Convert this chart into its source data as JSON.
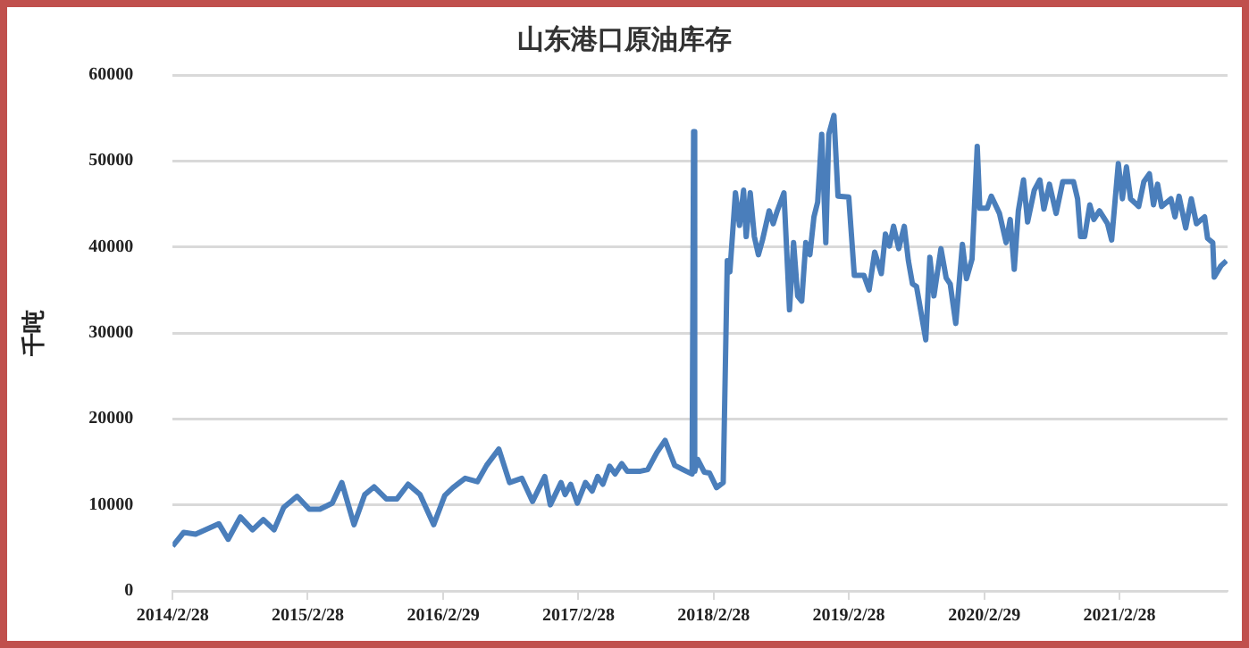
{
  "chart_data": {
    "type": "line",
    "title": "山东港口原油库存",
    "ylabel": "千吨",
    "x": [
      "2014-02-28",
      "2014-03-30",
      "2014-05-01",
      "2014-07-03",
      "2014-07-28",
      "2014-08-30",
      "2014-10-02",
      "2014-10-31",
      "2014-11-29",
      "2014-12-25",
      "2015-01-30",
      "2015-03-04",
      "2015-04-02",
      "2015-05-05",
      "2015-05-31",
      "2015-07-03",
      "2015-08-01",
      "2015-08-26",
      "2015-09-28",
      "2015-10-27",
      "2015-11-26",
      "2015-12-28",
      "2016-02-03",
      "2016-03-04",
      "2016-03-26",
      "2016-04-28",
      "2016-05-31",
      "2016-06-25",
      "2016-07-28",
      "2016-08-26",
      "2016-09-28",
      "2016-10-27",
      "2016-11-29",
      "2016-12-14",
      "2017-01-12",
      "2017-01-23",
      "2017-02-07",
      "2017-02-25",
      "2017-03-19",
      "2017-04-06",
      "2017-04-21",
      "2017-05-05",
      "2017-05-23",
      "2017-06-07",
      "2017-06-25",
      "2017-07-10",
      "2017-08-12",
      "2017-09-03",
      "2017-09-28",
      "2017-10-20",
      "2017-11-15",
      "2017-12-17",
      "2018-01-01",
      "2018-01-05",
      "2018-01-08",
      "2018-01-16",
      "2018-02-03",
      "2018-02-17",
      "2018-03-08",
      "2018-03-26",
      "2018-04-06",
      "2018-04-13",
      "2018-04-28",
      "2018-05-09",
      "2018-05-20",
      "2018-05-27",
      "2018-06-07",
      "2018-06-18",
      "2018-06-29",
      "2018-07-10",
      "2018-07-28",
      "2018-08-08",
      "2018-08-19",
      "2018-09-06",
      "2018-09-21",
      "2018-10-02",
      "2018-10-13",
      "2018-10-24",
      "2018-11-04",
      "2018-11-15",
      "2018-11-26",
      "2018-12-06",
      "2018-12-17",
      "2018-12-28",
      "2019-01-05",
      "2019-01-19",
      "2019-01-30",
      "2019-02-28",
      "2019-03-15",
      "2019-04-10",
      "2019-04-24",
      "2019-05-09",
      "2019-05-27",
      "2019-06-07",
      "2019-06-18",
      "2019-06-29",
      "2019-07-13",
      "2019-07-28",
      "2019-08-08",
      "2019-08-19",
      "2019-08-30",
      "2019-09-24",
      "2019-10-05",
      "2019-10-16",
      "2019-11-04",
      "2019-11-18",
      "2019-11-29",
      "2019-12-14",
      "2020-01-01",
      "2020-01-12",
      "2020-01-27",
      "2020-02-10",
      "2020-02-17",
      "2020-03-08",
      "2020-03-19",
      "2020-04-10",
      "2020-04-28",
      "2020-05-09",
      "2020-05-20",
      "2020-05-31",
      "2020-06-14",
      "2020-06-25",
      "2020-07-13",
      "2020-07-28",
      "2020-08-08",
      "2020-08-23",
      "2020-09-10",
      "2020-09-28",
      "2020-10-27",
      "2020-11-07",
      "2020-11-15",
      "2020-11-26",
      "2020-12-10",
      "2020-12-21",
      "2021-01-05",
      "2021-01-27",
      "2021-02-07",
      "2021-02-25",
      "2021-03-08",
      "2021-03-19",
      "2021-03-30",
      "2021-04-21",
      "2021-05-05",
      "2021-05-20",
      "2021-05-31",
      "2021-06-11",
      "2021-06-22",
      "2021-07-17",
      "2021-07-28",
      "2021-08-08",
      "2021-08-26",
      "2021-09-10",
      "2021-09-24",
      "2021-10-16",
      "2021-10-24",
      "2021-11-07",
      "2021-11-11",
      "2021-11-29",
      "2021-12-14"
    ],
    "series": [
      {
        "color": "#4a7ebb",
        "values": [
          5200,
          6800,
          6600,
          7800,
          6000,
          8600,
          7100,
          8300,
          7100,
          9700,
          11000,
          9500,
          9500,
          10200,
          12600,
          7700,
          11200,
          12100,
          10700,
          10700,
          12400,
          11200,
          7700,
          11100,
          12000,
          13100,
          12700,
          14600,
          16500,
          12600,
          13100,
          10400,
          13300,
          10000,
          12600,
          11200,
          12400,
          10200,
          12600,
          11600,
          13300,
          12400,
          14500,
          13600,
          14800,
          13900,
          13900,
          14100,
          16100,
          17500,
          14600,
          13900,
          13600,
          53400,
          13900,
          15300,
          13800,
          13700,
          12000,
          12600,
          38400,
          37100,
          46300,
          42500,
          46600,
          41200,
          46300,
          41200,
          39100,
          40800,
          44200,
          42700,
          44200,
          46300,
          32700,
          40500,
          34300,
          33700,
          40500,
          39100,
          43500,
          45200,
          53100,
          40500,
          53100,
          55300,
          45900,
          45800,
          36700,
          36700,
          35000,
          39400,
          36900,
          41500,
          40100,
          42400,
          39800,
          42400,
          38400,
          35700,
          35400,
          29200,
          38800,
          34300,
          39800,
          36400,
          35700,
          31100,
          40300,
          36300,
          38600,
          51700,
          44500,
          44500,
          45900,
          43900,
          40500,
          43200,
          37400,
          44200,
          47800,
          42900,
          46600,
          47800,
          44400,
          47300,
          43900,
          47600,
          47600,
          45600,
          41200,
          41200,
          44900,
          43200,
          44200,
          42700,
          40800,
          49700,
          45600,
          49300,
          45600,
          44700,
          47600,
          48500,
          44900,
          47300,
          44700,
          45600,
          43500,
          45900,
          42200,
          45600,
          42700,
          43500,
          41000,
          40500,
          36500,
          37800,
          38400
        ]
      }
    ],
    "xlim": [
      "2014-02-28",
      "2021-12-17"
    ],
    "xticks": [
      {
        "value": "2014-02-28",
        "label": "2014/2/28"
      },
      {
        "value": "2015-02-28",
        "label": "2015/2/28"
      },
      {
        "value": "2016-02-29",
        "label": "2016/2/29"
      },
      {
        "value": "2017-02-28",
        "label": "2017/2/28"
      },
      {
        "value": "2018-02-28",
        "label": "2018/2/28"
      },
      {
        "value": "2019-02-28",
        "label": "2019/2/28"
      },
      {
        "value": "2020-02-29",
        "label": "2020/2/29"
      },
      {
        "value": "2021-02-28",
        "label": "2021/2/28"
      }
    ],
    "ylim": [
      0,
      60000
    ],
    "yticks": [
      0,
      10000,
      20000,
      30000,
      40000,
      50000,
      60000
    ],
    "grid": "y",
    "legend": false,
    "marker": "none",
    "line_style": "solid"
  }
}
